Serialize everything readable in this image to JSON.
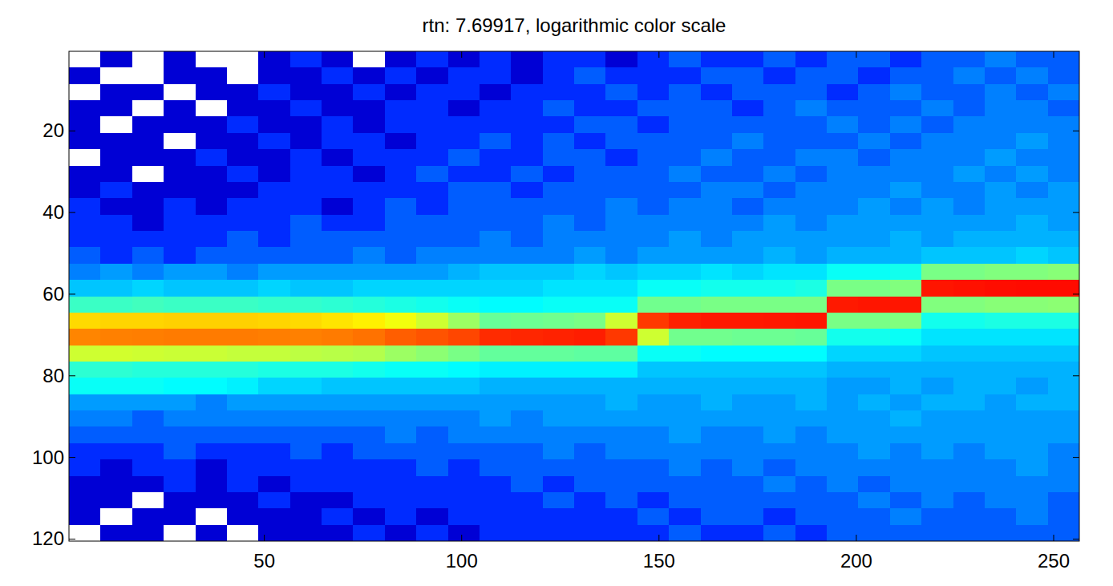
{
  "chart_data": {
    "type": "heatmap",
    "title": "rtn: 7.69917, logarithmic color scale",
    "log": true,
    "xlim": [
      0.5,
      256.5
    ],
    "ylim": [
      0.5,
      120.5
    ],
    "xticks": [
      50,
      100,
      150,
      200,
      250
    ],
    "yticks": [
      20,
      40,
      60,
      80,
      100,
      120
    ],
    "clim": [
      0.5,
      2000
    ],
    "x": [
      4.5,
      12.5,
      20.5,
      28.5,
      36.5,
      44.5,
      52.5,
      60.5,
      68.5,
      76.5,
      84.5,
      92.5,
      100.5,
      108.5,
      116.5,
      124.5,
      132.5,
      140.5,
      148.5,
      156.5,
      164.5,
      172.5,
      180.5,
      188.5,
      196.5,
      204.5,
      212.5,
      220.5,
      228.5,
      236.5,
      244.5,
      252.5
    ],
    "y": [
      2.5,
      6.5,
      10.5,
      14.5,
      18.5,
      22.5,
      26.5,
      30.5,
      34.5,
      38.5,
      42.5,
      46.5,
      50.5,
      54.5,
      58.5,
      62.5,
      66.5,
      70.5,
      74.5,
      78.5,
      82.5,
      86.5,
      90.5,
      94.5,
      98.5,
      102.5,
      106.5,
      110.5,
      114.5,
      118.5
    ],
    "cells": [
      [
        0,
        1,
        0,
        1,
        0,
        0,
        1,
        2,
        1,
        0,
        1,
        2,
        1,
        2,
        1,
        2,
        2,
        1,
        2,
        3,
        2,
        2,
        3,
        2,
        3,
        3,
        2,
        3,
        3,
        4,
        3,
        3
      ],
      [
        1,
        0,
        0,
        1,
        1,
        0,
        1,
        1,
        2,
        1,
        2,
        1,
        2,
        2,
        1,
        2,
        3,
        2,
        2,
        2,
        3,
        3,
        2,
        3,
        3,
        2,
        3,
        3,
        4,
        3,
        4,
        3
      ],
      [
        0,
        1,
        1,
        0,
        1,
        1,
        2,
        1,
        1,
        2,
        1,
        2,
        2,
        1,
        2,
        2,
        2,
        3,
        2,
        3,
        2,
        3,
        3,
        3,
        2,
        3,
        4,
        3,
        3,
        4,
        3,
        4
      ],
      [
        1,
        1,
        0,
        1,
        0,
        1,
        1,
        2,
        1,
        1,
        2,
        2,
        1,
        2,
        2,
        3,
        2,
        2,
        3,
        3,
        3,
        2,
        3,
        4,
        3,
        3,
        3,
        4,
        3,
        4,
        4,
        3
      ],
      [
        1,
        0,
        1,
        1,
        1,
        2,
        1,
        1,
        2,
        1,
        2,
        2,
        2,
        2,
        2,
        2,
        3,
        3,
        2,
        3,
        3,
        3,
        3,
        3,
        4,
        3,
        4,
        3,
        4,
        4,
        4,
        4
      ],
      [
        1,
        1,
        1,
        0,
        1,
        1,
        2,
        1,
        2,
        2,
        1,
        2,
        2,
        3,
        2,
        3,
        2,
        3,
        3,
        3,
        3,
        4,
        3,
        3,
        3,
        4,
        3,
        4,
        4,
        4,
        5,
        4
      ],
      [
        0,
        1,
        1,
        1,
        2,
        1,
        1,
        2,
        1,
        2,
        2,
        2,
        3,
        2,
        2,
        3,
        3,
        2,
        3,
        3,
        4,
        3,
        3,
        4,
        4,
        3,
        4,
        4,
        4,
        5,
        4,
        4
      ],
      [
        1,
        1,
        0,
        1,
        1,
        2,
        1,
        2,
        2,
        1,
        2,
        3,
        2,
        2,
        3,
        2,
        3,
        3,
        3,
        4,
        3,
        3,
        4,
        3,
        4,
        4,
        4,
        4,
        5,
        4,
        5,
        4
      ],
      [
        1,
        2,
        1,
        1,
        1,
        1,
        2,
        2,
        2,
        2,
        2,
        2,
        3,
        3,
        2,
        3,
        3,
        3,
        3,
        3,
        4,
        4,
        3,
        4,
        4,
        4,
        5,
        4,
        4,
        5,
        4,
        5
      ],
      [
        2,
        1,
        1,
        2,
        1,
        2,
        2,
        2,
        1,
        2,
        3,
        2,
        3,
        3,
        3,
        3,
        3,
        4,
        3,
        4,
        4,
        3,
        4,
        4,
        4,
        5,
        4,
        5,
        4,
        5,
        5,
        5
      ],
      [
        2,
        2,
        1,
        2,
        2,
        2,
        2,
        3,
        2,
        2,
        3,
        3,
        3,
        3,
        3,
        4,
        3,
        4,
        4,
        4,
        4,
        4,
        5,
        4,
        5,
        5,
        5,
        5,
        5,
        5,
        6,
        5
      ],
      [
        2,
        2,
        2,
        2,
        2,
        3,
        2,
        3,
        3,
        3,
        3,
        3,
        3,
        4,
        3,
        4,
        4,
        4,
        4,
        5,
        4,
        5,
        5,
        5,
        5,
        5,
        6,
        5,
        6,
        6,
        6,
        6
      ],
      [
        3,
        2,
        3,
        2,
        3,
        3,
        3,
        3,
        3,
        4,
        3,
        4,
        4,
        4,
        4,
        4,
        5,
        4,
        5,
        5,
        5,
        5,
        6,
        5,
        6,
        6,
        6,
        7,
        7,
        7,
        8,
        7
      ],
      [
        4,
        5,
        4,
        5,
        5,
        4,
        5,
        5,
        5,
        5,
        5,
        5,
        6,
        7,
        7,
        7,
        8,
        7,
        8,
        8,
        9,
        8,
        9,
        9,
        12,
        12,
        13,
        30,
        30,
        32,
        32,
        34
      ],
      [
        7,
        7,
        8,
        7,
        7,
        7,
        8,
        7,
        7,
        8,
        8,
        8,
        8,
        8,
        8,
        9,
        9,
        9,
        12,
        12,
        13,
        13,
        13,
        14,
        30,
        30,
        32,
        600,
        620,
        640,
        650,
        650
      ],
      [
        18,
        18,
        19,
        18,
        18,
        18,
        17,
        17,
        16,
        15,
        14,
        13,
        12,
        11,
        11,
        12,
        12,
        12,
        28,
        28,
        30,
        30,
        30,
        30,
        580,
        600,
        600,
        32,
        32,
        34,
        34,
        35
      ],
      [
        120,
        125,
        125,
        130,
        130,
        130,
        125,
        120,
        110,
        100,
        80,
        60,
        40,
        26,
        27,
        28,
        30,
        60,
        450,
        550,
        580,
        580,
        590,
        600,
        30,
        30,
        32,
        13,
        13,
        14,
        14,
        14
      ],
      [
        240,
        250,
        255,
        260,
        260,
        260,
        255,
        250,
        260,
        280,
        330,
        360,
        400,
        500,
        520,
        540,
        560,
        450,
        60,
        28,
        28,
        27,
        27,
        26,
        13,
        13,
        12,
        9,
        9,
        9,
        9,
        9
      ],
      [
        60,
        62,
        60,
        58,
        58,
        55,
        55,
        52,
        50,
        48,
        40,
        35,
        30,
        25,
        25,
        25,
        24,
        24,
        12,
        12,
        11,
        11,
        11,
        11,
        8,
        8,
        8,
        7,
        7,
        7,
        7,
        7
      ],
      [
        16,
        16,
        15,
        15,
        15,
        15,
        14,
        14,
        14,
        13,
        12,
        12,
        11,
        10,
        10,
        10,
        10,
        10,
        7,
        7,
        7,
        7,
        7,
        7,
        6,
        6,
        6,
        6,
        6,
        6,
        6,
        6
      ],
      [
        12,
        12,
        12,
        11,
        11,
        10,
        8,
        8,
        7,
        7,
        7,
        7,
        7,
        6,
        6,
        6,
        6,
        6,
        6,
        6,
        6,
        6,
        6,
        6,
        5,
        5,
        6,
        5,
        6,
        6,
        5,
        6
      ],
      [
        5,
        5,
        5,
        5,
        4,
        5,
        5,
        5,
        5,
        5,
        5,
        5,
        5,
        5,
        5,
        5,
        5,
        6,
        5,
        5,
        6,
        5,
        5,
        6,
        5,
        6,
        5,
        6,
        6,
        5,
        6,
        6
      ],
      [
        4,
        4,
        3,
        4,
        4,
        4,
        4,
        4,
        4,
        4,
        4,
        4,
        4,
        5,
        4,
        5,
        5,
        5,
        5,
        5,
        5,
        5,
        5,
        5,
        5,
        5,
        6,
        5,
        5,
        5,
        5,
        5
      ],
      [
        3,
        3,
        3,
        3,
        3,
        3,
        3,
        3,
        3,
        3,
        4,
        3,
        4,
        4,
        4,
        4,
        4,
        4,
        4,
        5,
        4,
        4,
        5,
        4,
        5,
        5,
        5,
        5,
        5,
        5,
        5,
        5
      ],
      [
        2,
        2,
        2,
        3,
        2,
        2,
        2,
        3,
        2,
        3,
        3,
        3,
        3,
        3,
        3,
        4,
        3,
        4,
        4,
        4,
        4,
        4,
        4,
        4,
        4,
        5,
        4,
        5,
        4,
        5,
        5,
        4
      ],
      [
        2,
        1,
        2,
        2,
        1,
        2,
        2,
        2,
        2,
        2,
        2,
        3,
        2,
        3,
        3,
        3,
        3,
        3,
        3,
        4,
        3,
        4,
        3,
        4,
        4,
        4,
        4,
        4,
        4,
        4,
        5,
        4
      ],
      [
        1,
        1,
        1,
        2,
        1,
        2,
        1,
        2,
        2,
        2,
        2,
        2,
        2,
        2,
        3,
        2,
        3,
        3,
        3,
        3,
        3,
        3,
        4,
        3,
        4,
        3,
        4,
        4,
        4,
        4,
        4,
        4
      ],
      [
        1,
        1,
        0,
        1,
        1,
        1,
        2,
        1,
        1,
        2,
        2,
        2,
        2,
        2,
        2,
        3,
        2,
        3,
        2,
        3,
        3,
        3,
        3,
        3,
        3,
        4,
        3,
        4,
        3,
        4,
        4,
        3
      ],
      [
        1,
        0,
        1,
        1,
        0,
        1,
        1,
        1,
        2,
        1,
        2,
        1,
        2,
        2,
        2,
        2,
        2,
        2,
        3,
        2,
        3,
        3,
        2,
        3,
        3,
        3,
        4,
        3,
        3,
        3,
        4,
        3
      ],
      [
        0,
        1,
        1,
        0,
        1,
        0,
        1,
        1,
        1,
        2,
        1,
        2,
        1,
        2,
        2,
        2,
        2,
        2,
        2,
        3,
        2,
        2,
        3,
        2,
        3,
        3,
        3,
        3,
        3,
        3,
        3,
        3
      ]
    ]
  }
}
